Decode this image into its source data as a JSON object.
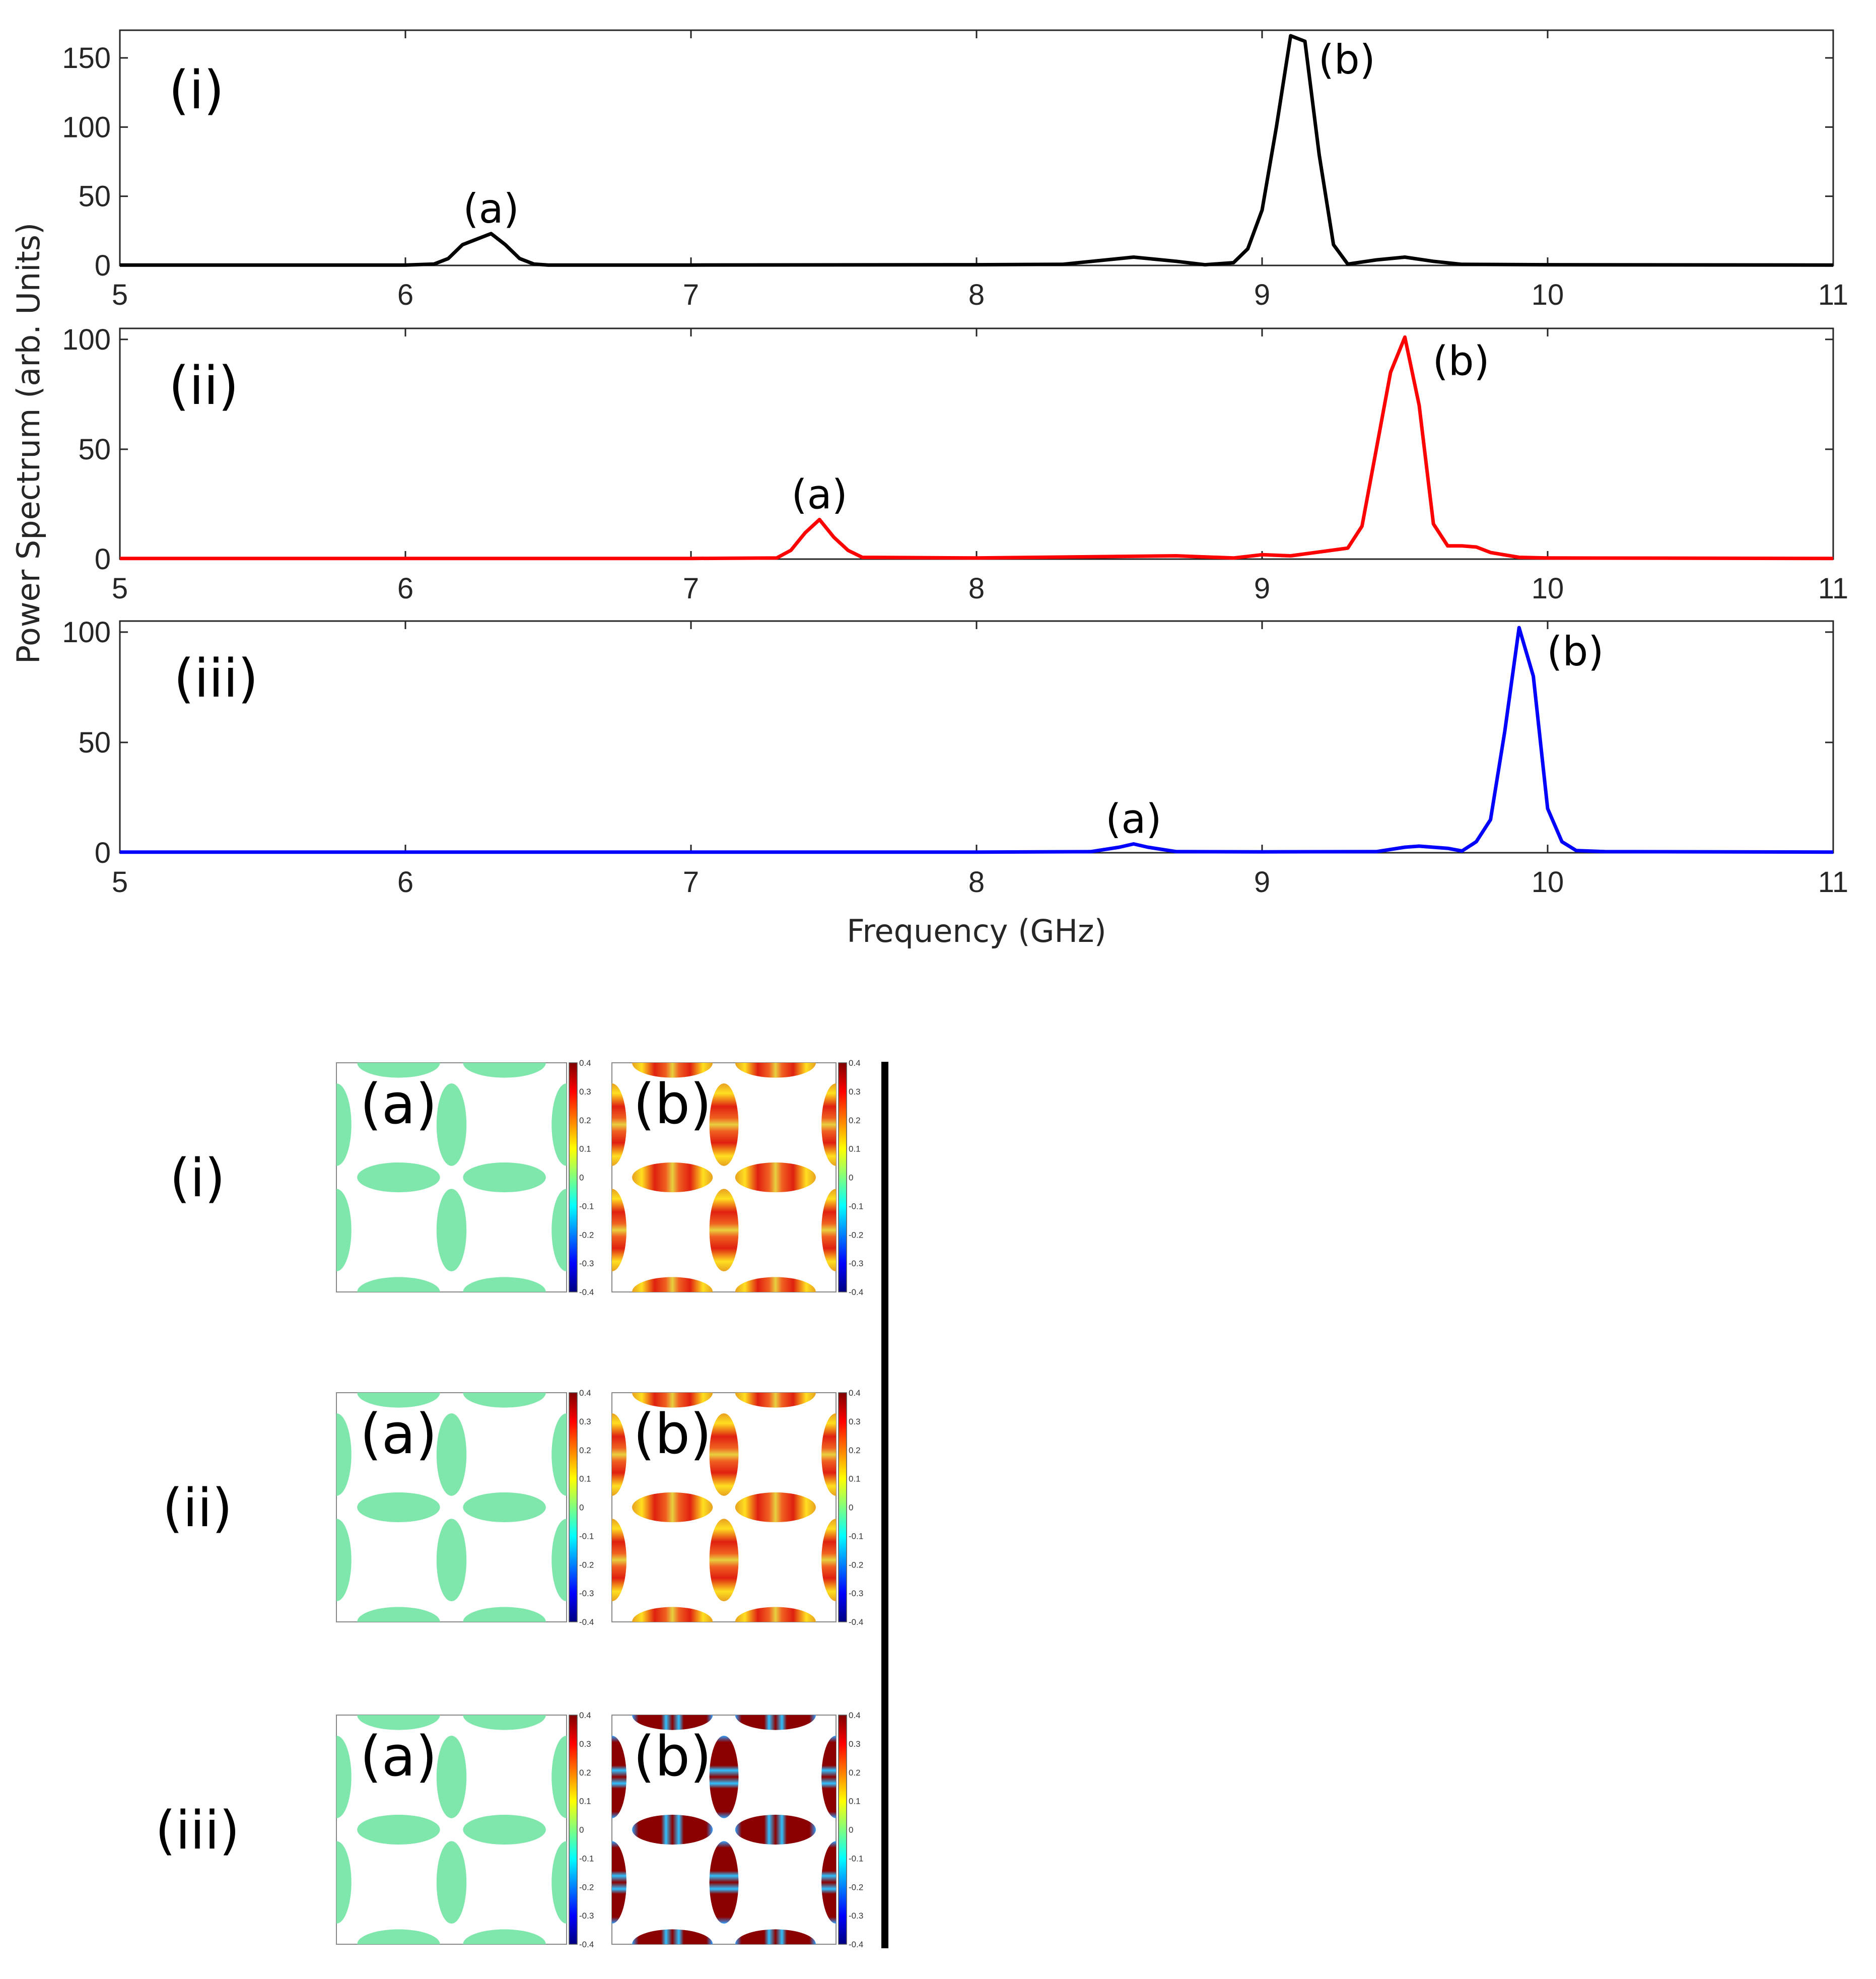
{
  "chart_data": {
    "type": "line",
    "xlabel": "Frequency (GHz)",
    "ylabel": "Power Spectrum (arb. Units)",
    "xlim": [
      5,
      11
    ],
    "xticks": [
      "5",
      "6",
      "7",
      "8",
      "9",
      "10",
      "11"
    ],
    "panels": [
      {
        "label": "(i)",
        "color": "#000000",
        "ylim": [
          0,
          170
        ],
        "yticks": [
          "0",
          "50",
          "100",
          "150"
        ],
        "x": [
          5.0,
          5.5,
          6.0,
          6.1,
          6.15,
          6.2,
          6.3,
          6.35,
          6.4,
          6.45,
          6.5,
          7.0,
          8.0,
          8.3,
          8.55,
          8.7,
          8.8,
          8.9,
          8.95,
          9.0,
          9.05,
          9.1,
          9.15,
          9.2,
          9.25,
          9.3,
          9.4,
          9.5,
          9.6,
          9.7,
          10.0,
          11.0
        ],
        "y": [
          0.3,
          0.3,
          0.3,
          1,
          5,
          15,
          23,
          15,
          5,
          1,
          0.3,
          0.3,
          0.5,
          0.8,
          6,
          3,
          0.5,
          2,
          12,
          40,
          100,
          166,
          162,
          80,
          15,
          1,
          4,
          6,
          3,
          0.8,
          0.5,
          0.3
        ],
        "peaks": [
          {
            "label": "(a)",
            "x": 6.3,
            "y": 23
          },
          {
            "label": "(b)",
            "x": 9.1,
            "y": 166
          }
        ]
      },
      {
        "label": "(ii)",
        "color": "#ff0000",
        "ylim": [
          0,
          105
        ],
        "yticks": [
          "0",
          "50",
          "100"
        ],
        "x": [
          5.0,
          6.0,
          7.0,
          7.3,
          7.35,
          7.4,
          7.45,
          7.5,
          7.55,
          7.6,
          8.0,
          8.7,
          8.9,
          9.0,
          9.1,
          9.3,
          9.35,
          9.4,
          9.45,
          9.5,
          9.55,
          9.6,
          9.65,
          9.7,
          9.75,
          9.8,
          9.9,
          10.0,
          11.0
        ],
        "y": [
          0.3,
          0.3,
          0.3,
          0.5,
          4,
          12,
          18,
          10,
          4,
          0.8,
          0.5,
          1.5,
          0.5,
          2,
          1.5,
          5,
          15,
          50,
          85,
          101,
          70,
          16,
          6,
          6,
          5.5,
          3,
          0.8,
          0.5,
          0.3
        ],
        "peaks": [
          {
            "label": "(a)",
            "x": 7.45,
            "y": 18
          },
          {
            "label": "(b)",
            "x": 9.5,
            "y": 101
          }
        ]
      },
      {
        "label": "(iii)",
        "color": "#0000ff",
        "ylim": [
          0,
          105
        ],
        "yticks": [
          "0",
          "50",
          "100"
        ],
        "x": [
          5.0,
          6.0,
          7.0,
          8.0,
          8.4,
          8.5,
          8.55,
          8.6,
          8.7,
          9.0,
          9.4,
          9.5,
          9.55,
          9.65,
          9.7,
          9.75,
          9.8,
          9.85,
          9.9,
          9.95,
          10.0,
          10.05,
          10.1,
          10.2,
          11.0
        ],
        "y": [
          0.3,
          0.3,
          0.3,
          0.3,
          0.5,
          2.5,
          4,
          2.5,
          0.5,
          0.4,
          0.5,
          2.5,
          3,
          2,
          0.8,
          5,
          15,
          55,
          102,
          80,
          20,
          5,
          1,
          0.5,
          0.3
        ],
        "peaks": [
          {
            "label": "(a)",
            "x": 8.55,
            "y": 4
          },
          {
            "label": "(b)",
            "x": 9.9,
            "y": 102
          }
        ]
      }
    ],
    "mode_maps": {
      "rows": [
        {
          "label": "(i)",
          "modes": [
            {
              "label": "(a)",
              "profile": "uniform-weak"
            },
            {
              "label": "(b)",
              "profile": "banded-strong"
            }
          ]
        },
        {
          "label": "(ii)",
          "modes": [
            {
              "label": "(a)",
              "profile": "uniform-weak"
            },
            {
              "label": "(b)",
              "profile": "banded-strong"
            }
          ]
        },
        {
          "label": "(iii)",
          "modes": [
            {
              "label": "(a)",
              "profile": "uniform-weak"
            },
            {
              "label": "(b)",
              "profile": "banded-saturated"
            }
          ]
        }
      ],
      "colorbar_ticks": [
        "0.4",
        "0.3",
        "0.2",
        "0.1",
        "0",
        "-0.1",
        "-0.2",
        "-0.3",
        "-0.4"
      ],
      "colormap": "jet",
      "clim": [
        -0.4,
        0.4
      ]
    }
  }
}
